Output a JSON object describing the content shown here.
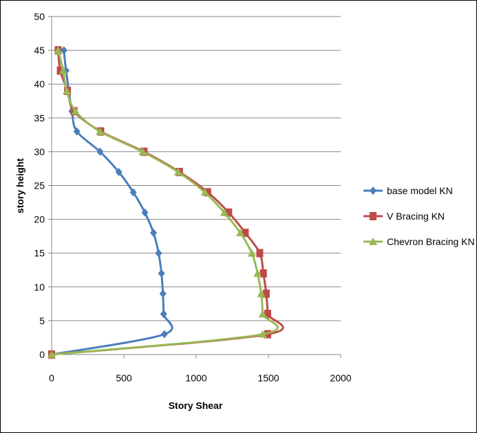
{
  "chart_data": {
    "type": "line",
    "xlabel": "Story Shear",
    "ylabel": "story height",
    "xlim": [
      0,
      2000
    ],
    "ylim": [
      0,
      50
    ],
    "xticks": [
      "0",
      "500",
      "1000",
      "1500",
      "2000"
    ],
    "yticks": [
      "0",
      "5",
      "10",
      "15",
      "20",
      "25",
      "30",
      "35",
      "40",
      "45",
      "50"
    ],
    "grid": "horizontal",
    "legend_position": "right",
    "series": [
      {
        "name": "base model KN",
        "color": "#4a7ebb",
        "marker": "diamond",
        "x": [
          0,
          780,
          775,
          770,
          760,
          740,
          705,
          645,
          565,
          465,
          335,
          175,
          140,
          100,
          85
        ],
        "y": [
          0,
          3,
          6,
          9,
          12,
          15,
          18,
          21,
          24,
          27,
          30,
          33,
          36,
          42,
          45
        ]
      },
      {
        "name": "V Bracing KN",
        "color": "#be4b48",
        "marker": "square",
        "x": [
          0,
          1495,
          1495,
          1485,
          1465,
          1440,
          1340,
          1225,
          1080,
          885,
          640,
          340,
          155,
          110,
          60,
          45
        ],
        "y": [
          0,
          3,
          6,
          9,
          12,
          15,
          18,
          21,
          24,
          27,
          30,
          33,
          36,
          39,
          42,
          45
        ]
      },
      {
        "name": "Chevron Bracing KN",
        "color": "#98b954",
        "marker": "triangle",
        "x": [
          0,
          1460,
          1460,
          1450,
          1425,
          1385,
          1305,
          1195,
          1060,
          875,
          630,
          335,
          165,
          105,
          80,
          45
        ],
        "y": [
          0,
          3,
          6,
          9,
          12,
          15,
          18,
          21,
          24,
          27,
          30,
          33,
          36,
          39,
          42,
          45
        ]
      }
    ]
  }
}
